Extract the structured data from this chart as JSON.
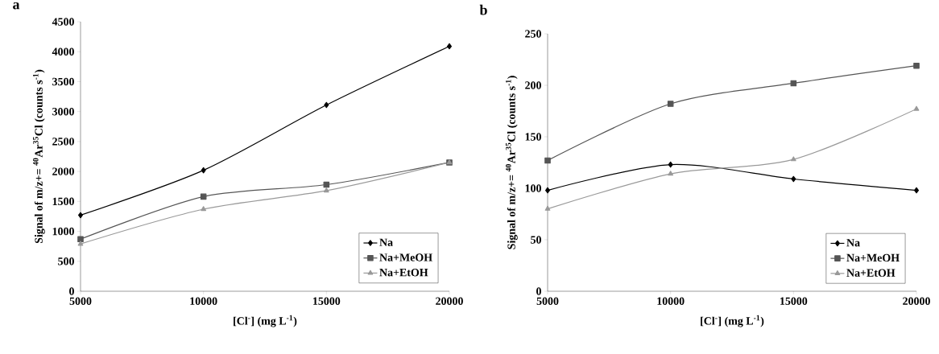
{
  "chart_data": [
    {
      "type": "line",
      "title": "a",
      "xlabel": "[Cl$^{-}$] (mg L$^{-1}$)",
      "ylabel": "Signal of m/z+= $^{40}$Ar$^{35}$Cl (counts s$^{-1}$)",
      "categories": [
        "5000",
        "10000",
        "15000",
        "20000"
      ],
      "ylim": [
        0,
        4500
      ],
      "yticks": [
        0,
        500,
        1000,
        1500,
        2000,
        2500,
        3000,
        3500,
        4000,
        4500
      ],
      "legend": "bottom right",
      "grid": false,
      "series": [
        {
          "name": "Na",
          "color": "#000000",
          "marker": "diamond",
          "values": [
            1270,
            2020,
            3110,
            4090
          ]
        },
        {
          "name": "Na+MeOH",
          "color": "#555555",
          "marker": "square",
          "values": [
            870,
            1580,
            1780,
            2150
          ]
        },
        {
          "name": "Na+EtOH",
          "color": "#999999",
          "marker": "triangle",
          "values": [
            790,
            1370,
            1680,
            2150
          ]
        }
      ]
    },
    {
      "type": "line",
      "title": "b",
      "xlabel": "[Cl$^{-}$] (mg L$^{-1}$)",
      "ylabel": "Signal of m/z+= $^{40}$Ar$^{35}$Cl (counts s$^{-1}$)",
      "categories": [
        "5000",
        "10000",
        "15000",
        "20000"
      ],
      "ylim": [
        0,
        250
      ],
      "yticks": [
        0,
        50,
        100,
        150,
        200,
        250
      ],
      "legend": "bottom right",
      "grid": false,
      "series": [
        {
          "name": "Na",
          "color": "#000000",
          "marker": "diamond",
          "values": [
            98,
            123,
            109,
            98
          ]
        },
        {
          "name": "Na+MeOH",
          "color": "#555555",
          "marker": "square",
          "values": [
            127,
            182,
            202,
            219
          ]
        },
        {
          "name": "Na+EtOH",
          "color": "#999999",
          "marker": "triangle",
          "values": [
            80,
            114,
            128,
            177
          ]
        }
      ]
    }
  ]
}
